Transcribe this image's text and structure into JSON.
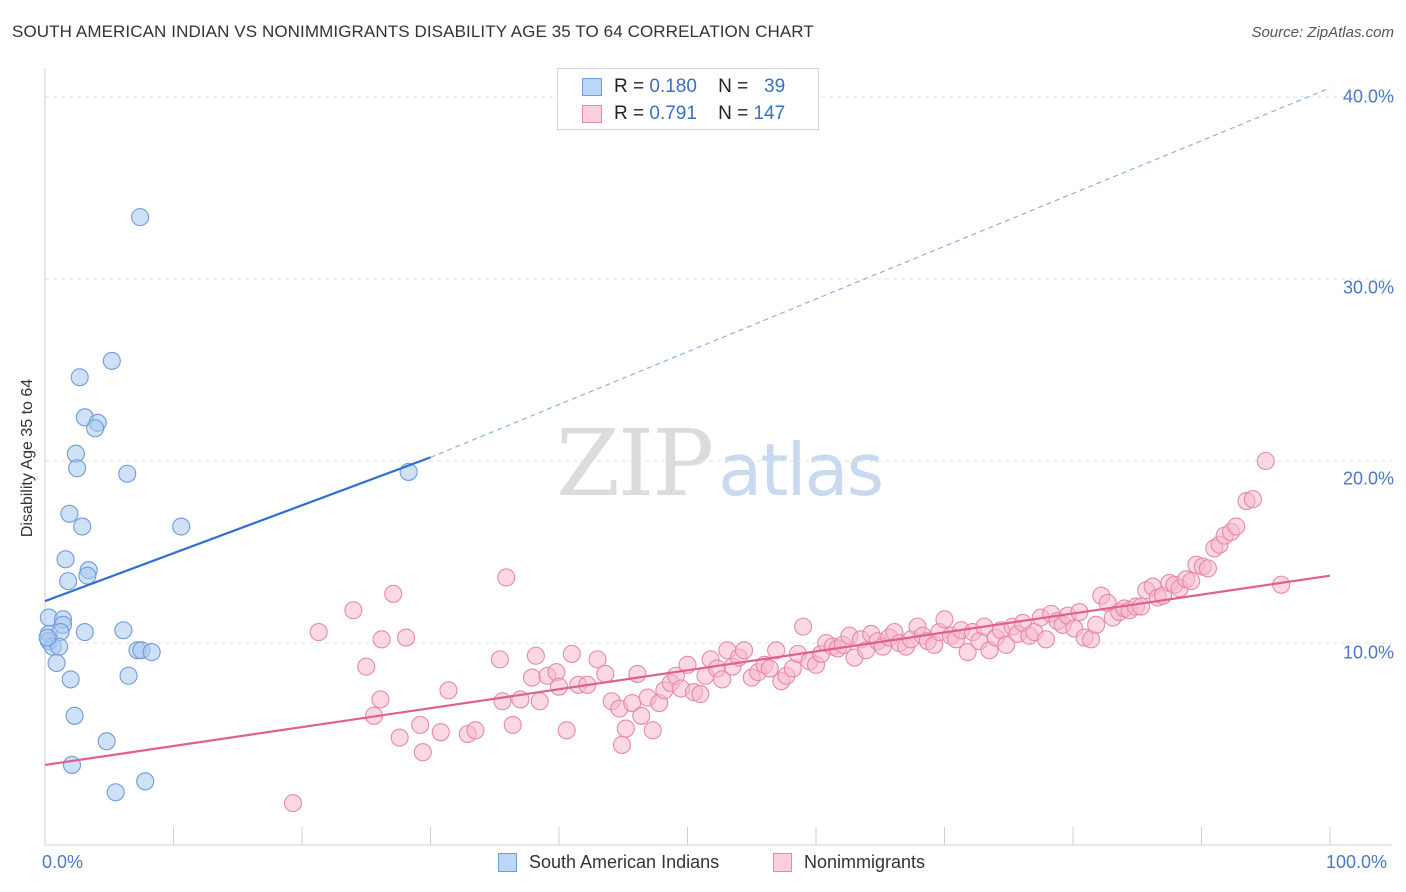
{
  "header": {
    "title": "SOUTH AMERICAN INDIAN VS NONIMMIGRANTS DISABILITY AGE 35 TO 64 CORRELATION CHART",
    "source": "Source: ZipAtlas.com"
  },
  "watermark": {
    "zip": "ZIP",
    "atlas": "atlas"
  },
  "legend": {
    "rows": [
      {
        "r_label": "R =",
        "r_value": "0.180",
        "n_label": "N =",
        "n_value": "39",
        "color": "#a8c8f0",
        "border": "#6f9bd8"
      },
      {
        "r_label": "R =",
        "r_value": "0.791",
        "n_label": "N =",
        "n_value": "147",
        "color": "#f8b8cc",
        "border": "#e58aa8"
      }
    ]
  },
  "chart_data": {
    "type": "scatter",
    "title": "SOUTH AMERICAN INDIAN VS NONIMMIGRANTS DISABILITY AGE 35 TO 64 CORRELATION CHART",
    "xlabel": "",
    "ylabel": "Disability Age 35 to 64",
    "xlim": [
      0,
      100
    ],
    "ylim": [
      0,
      40
    ],
    "x_ticks": [
      "0.0%",
      "100.0%"
    ],
    "y_ticks": [
      {
        "value": 10,
        "label": "10.0%"
      },
      {
        "value": 20,
        "label": "20.0%"
      },
      {
        "value": 30,
        "label": "30.0%"
      },
      {
        "value": 40,
        "label": "40.0%"
      }
    ],
    "grid": true,
    "legend_position": "bottom-center",
    "series": [
      {
        "name": "South American Indians",
        "color": "#a8c8f0",
        "stroke": "#6f9bd8",
        "line_color": "#2f6fd0",
        "trend": {
          "x0": 0,
          "y0": 12.3,
          "x1": 30,
          "y1": 20.2,
          "extend_to_x": 100,
          "extend_y": 40.5
        },
        "points": [
          [
            7.4,
            33.4
          ],
          [
            5.2,
            25.5
          ],
          [
            2.7,
            24.6
          ],
          [
            3.1,
            22.4
          ],
          [
            4.1,
            22.1
          ],
          [
            3.9,
            21.8
          ],
          [
            2.4,
            20.4
          ],
          [
            2.5,
            19.6
          ],
          [
            6.4,
            19.3
          ],
          [
            28.3,
            19.4
          ],
          [
            1.9,
            17.1
          ],
          [
            2.9,
            16.4
          ],
          [
            10.6,
            16.4
          ],
          [
            1.6,
            14.6
          ],
          [
            3.4,
            14.0
          ],
          [
            3.3,
            13.7
          ],
          [
            1.8,
            13.4
          ],
          [
            0.3,
            11.4
          ],
          [
            1.4,
            11.3
          ],
          [
            1.4,
            11.0
          ],
          [
            0.3,
            10.5
          ],
          [
            1.2,
            10.6
          ],
          [
            3.1,
            10.6
          ],
          [
            6.1,
            10.7
          ],
          [
            0.3,
            10.1
          ],
          [
            0.6,
            9.8
          ],
          [
            1.1,
            9.8
          ],
          [
            7.2,
            9.6
          ],
          [
            7.5,
            9.6
          ],
          [
            8.3,
            9.5
          ],
          [
            0.9,
            8.9
          ],
          [
            2.0,
            8.0
          ],
          [
            6.5,
            8.2
          ],
          [
            2.3,
            6.0
          ],
          [
            4.8,
            4.6
          ],
          [
            2.1,
            3.3
          ],
          [
            5.5,
            1.8
          ],
          [
            7.8,
            2.4
          ],
          [
            0.2,
            10.3
          ]
        ]
      },
      {
        "name": "Nonimmigrants",
        "color": "#f8b8cc",
        "stroke": "#e58aa8",
        "line_color": "#e0608c",
        "trend": {
          "x0": 0,
          "y0": 3.3,
          "x1": 100,
          "y1": 13.7
        },
        "points": [
          [
            19.3,
            1.2
          ],
          [
            21.3,
            10.6
          ],
          [
            24.0,
            11.8
          ],
          [
            27.1,
            12.7
          ],
          [
            35.9,
            13.6
          ],
          [
            25.0,
            8.7
          ],
          [
            25.6,
            6.0
          ],
          [
            26.2,
            10.2
          ],
          [
            26.1,
            6.9
          ],
          [
            27.6,
            4.8
          ],
          [
            28.1,
            10.3
          ],
          [
            29.2,
            5.5
          ],
          [
            29.4,
            4.0
          ],
          [
            30.8,
            5.1
          ],
          [
            31.4,
            7.4
          ],
          [
            32.9,
            5.0
          ],
          [
            33.5,
            5.2
          ],
          [
            35.4,
            9.1
          ],
          [
            35.6,
            6.8
          ],
          [
            36.4,
            5.5
          ],
          [
            37.0,
            6.9
          ],
          [
            37.9,
            8.1
          ],
          [
            38.2,
            9.3
          ],
          [
            38.5,
            6.8
          ],
          [
            39.1,
            8.2
          ],
          [
            39.8,
            8.4
          ],
          [
            40.0,
            7.6
          ],
          [
            40.6,
            5.2
          ],
          [
            41.0,
            9.4
          ],
          [
            41.5,
            7.7
          ],
          [
            42.2,
            7.7
          ],
          [
            43.0,
            9.1
          ],
          [
            43.6,
            8.3
          ],
          [
            44.1,
            6.8
          ],
          [
            44.7,
            6.4
          ],
          [
            44.9,
            4.4
          ],
          [
            45.2,
            5.3
          ],
          [
            45.7,
            6.7
          ],
          [
            46.1,
            8.3
          ],
          [
            46.4,
            6.0
          ],
          [
            46.9,
            7.0
          ],
          [
            47.3,
            5.2
          ],
          [
            47.8,
            6.7
          ],
          [
            48.2,
            7.4
          ],
          [
            48.7,
            7.8
          ],
          [
            49.1,
            8.2
          ],
          [
            49.5,
            7.5
          ],
          [
            50.0,
            8.8
          ],
          [
            50.5,
            7.3
          ],
          [
            51.0,
            7.2
          ],
          [
            51.4,
            8.2
          ],
          [
            51.8,
            9.1
          ],
          [
            52.3,
            8.6
          ],
          [
            52.7,
            8.0
          ],
          [
            53.1,
            9.6
          ],
          [
            53.5,
            8.7
          ],
          [
            54.0,
            9.2
          ],
          [
            54.4,
            9.6
          ],
          [
            55.0,
            8.1
          ],
          [
            55.5,
            8.4
          ],
          [
            56.0,
            8.8
          ],
          [
            56.4,
            8.6
          ],
          [
            56.9,
            9.6
          ],
          [
            57.3,
            7.9
          ],
          [
            57.7,
            8.2
          ],
          [
            58.2,
            8.6
          ],
          [
            58.6,
            9.4
          ],
          [
            59.0,
            10.9
          ],
          [
            59.5,
            9.0
          ],
          [
            60.0,
            8.8
          ],
          [
            60.4,
            9.4
          ],
          [
            60.8,
            10.0
          ],
          [
            61.3,
            9.8
          ],
          [
            61.7,
            9.7
          ],
          [
            62.1,
            9.9
          ],
          [
            62.6,
            10.4
          ],
          [
            63.0,
            9.2
          ],
          [
            63.5,
            10.2
          ],
          [
            63.9,
            9.6
          ],
          [
            64.3,
            10.5
          ],
          [
            64.8,
            10.1
          ],
          [
            65.2,
            9.8
          ],
          [
            65.7,
            10.3
          ],
          [
            66.1,
            10.6
          ],
          [
            66.5,
            10.0
          ],
          [
            67.0,
            9.8
          ],
          [
            67.4,
            10.2
          ],
          [
            67.9,
            10.9
          ],
          [
            68.3,
            10.4
          ],
          [
            68.7,
            10.1
          ],
          [
            69.2,
            9.9
          ],
          [
            69.6,
            10.6
          ],
          [
            70.0,
            11.3
          ],
          [
            70.5,
            10.4
          ],
          [
            70.9,
            10.2
          ],
          [
            71.3,
            10.7
          ],
          [
            71.8,
            9.5
          ],
          [
            72.2,
            10.6
          ],
          [
            72.7,
            10.1
          ],
          [
            73.1,
            10.9
          ],
          [
            73.5,
            9.6
          ],
          [
            74.0,
            10.3
          ],
          [
            74.4,
            10.7
          ],
          [
            74.8,
            9.9
          ],
          [
            75.3,
            10.9
          ],
          [
            75.7,
            10.5
          ],
          [
            76.1,
            11.1
          ],
          [
            76.6,
            10.4
          ],
          [
            77.0,
            10.6
          ],
          [
            77.5,
            11.4
          ],
          [
            77.9,
            10.2
          ],
          [
            78.3,
            11.6
          ],
          [
            78.8,
            11.2
          ],
          [
            79.2,
            11.0
          ],
          [
            79.6,
            11.5
          ],
          [
            80.1,
            10.8
          ],
          [
            80.5,
            11.7
          ],
          [
            80.9,
            10.3
          ],
          [
            81.4,
            10.2
          ],
          [
            81.8,
            11.0
          ],
          [
            82.2,
            12.6
          ],
          [
            82.7,
            12.2
          ],
          [
            83.1,
            11.4
          ],
          [
            83.6,
            11.7
          ],
          [
            84.0,
            11.9
          ],
          [
            84.4,
            11.8
          ],
          [
            84.9,
            12.0
          ],
          [
            85.3,
            12.0
          ],
          [
            85.7,
            12.9
          ],
          [
            86.2,
            13.1
          ],
          [
            86.6,
            12.5
          ],
          [
            87.0,
            12.6
          ],
          [
            87.5,
            13.3
          ],
          [
            87.9,
            13.2
          ],
          [
            88.3,
            13.0
          ],
          [
            88.8,
            13.5
          ],
          [
            89.2,
            13.4
          ],
          [
            89.6,
            14.3
          ],
          [
            90.1,
            14.2
          ],
          [
            90.5,
            14.1
          ],
          [
            91.0,
            15.2
          ],
          [
            91.4,
            15.4
          ],
          [
            91.8,
            15.9
          ],
          [
            92.3,
            16.1
          ],
          [
            92.7,
            16.4
          ],
          [
            93.5,
            17.8
          ],
          [
            94.0,
            17.9
          ],
          [
            95.0,
            20.0
          ],
          [
            96.2,
            13.2
          ]
        ]
      }
    ]
  },
  "bottom_legend": {
    "items": [
      "South American Indians",
      "Nonimmigrants"
    ]
  }
}
